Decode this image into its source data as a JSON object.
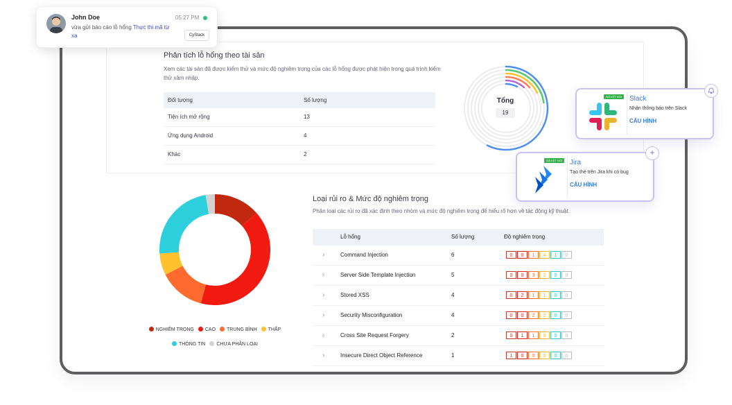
{
  "notification": {
    "name": "John Doe",
    "time": "05:27 PM",
    "message_prefix": "vừa gửi báo cáo lỗ hổng",
    "message_link": "Thực thi mã từ xa",
    "brand": "CyStack",
    "status_color": "#27c279"
  },
  "asset_analysis": {
    "title": "Phân tích lỗ hổng theo tài sản",
    "description": "Xem các tài sản đã được kiểm thử và mức độ nghiêm trọng của các lỗ hổng được phát hiện trong quá trình kiểm thử xâm nhập.",
    "headers": [
      "Đối tượng",
      "Số lượng"
    ],
    "rows": [
      {
        "target": "Tiện ích mở rộng",
        "count": "13"
      },
      {
        "target": "Ứng dụng Android",
        "count": "4"
      },
      {
        "target": "Khác",
        "count": "2"
      }
    ],
    "total_label": "Tổng",
    "total_value": "19"
  },
  "integrations": {
    "slack": {
      "badge": "ĐÃ KẾT NỐI",
      "name": "Slack",
      "description": "Nhận thông báo trên Slack",
      "action": "CẤU HÌNH",
      "icon": "slack-logo"
    },
    "jira": {
      "badge": "ĐÃ KẾT NỐI",
      "name": "Jira",
      "description": "Tạo thẻ trên Jira khi có bug",
      "action": "CẤU HÌNH",
      "icon": "jira-logo"
    }
  },
  "risk": {
    "title": "Loại rủi ro & Mức độ nghiêm trọng",
    "description": "Phân loại các rủi ro đã xác định theo nhóm và mức độ nghiêm trọng để hiểu rõ hơn về tác động kỹ thuật.",
    "headers": [
      "Lỗ hổng",
      "Số lượng",
      "Độ nghiêm trọng"
    ],
    "severity_colors": [
      "#c0392b",
      "#e02020",
      "#ff6b2b",
      "#f5b731",
      "#2ec5d6",
      "#bbbbbb"
    ],
    "rows": [
      {
        "name": "Command Injection",
        "count": "6",
        "severity": [
          "0",
          "0",
          "1",
          "4",
          "1",
          "0"
        ]
      },
      {
        "name": "Server Side Template Injection",
        "count": "5",
        "severity": [
          "0",
          "0",
          "3",
          "2",
          "0",
          "0"
        ]
      },
      {
        "name": "Stored XSS",
        "count": "4",
        "severity": [
          "0",
          "2",
          "1",
          "1",
          "0",
          "0"
        ]
      },
      {
        "name": "Security Misconfiguration",
        "count": "4",
        "severity": [
          "0",
          "0",
          "2",
          "2",
          "0",
          "0"
        ]
      },
      {
        "name": "Cross Site Request Forgery",
        "count": "2",
        "severity": [
          "0",
          "1",
          "1",
          "0",
          "0",
          "0"
        ]
      },
      {
        "name": "Insecure Direct Object Reference",
        "count": "1",
        "severity": [
          "1",
          "0",
          "0",
          "0",
          "0",
          "0"
        ]
      }
    ]
  },
  "chart_data": {
    "type": "pie",
    "categories": [
      "NGHIÊM TRỌNG",
      "CAO",
      "TRUNG BÌNH",
      "THẤP",
      "THÔNG TIN",
      "CHƯA PHÂN LOẠI"
    ],
    "values": [
      3,
      9,
      3,
      1.4,
      5.2,
      0.6
    ],
    "colors": [
      "#c0290f",
      "#f01a10",
      "#ff6a2e",
      "#ffc12e",
      "#2ecfdc",
      "#d2d2d2"
    ],
    "legend": "bottom"
  }
}
